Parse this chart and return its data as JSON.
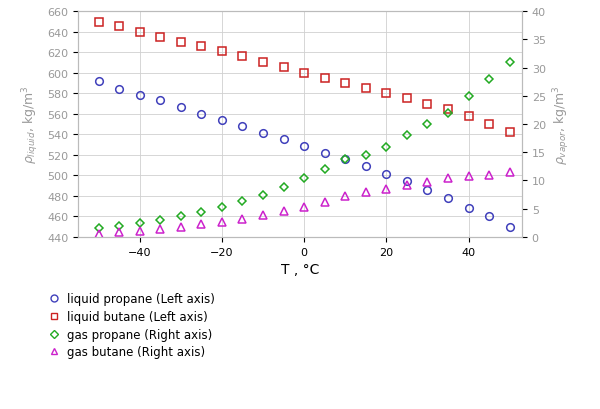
{
  "liquid_propane_T": [
    -50,
    -45,
    -40,
    -35,
    -30,
    -25,
    -20,
    -15,
    -10,
    -5,
    0,
    5,
    10,
    15,
    20,
    25,
    30,
    35,
    40,
    45,
    50
  ],
  "liquid_propane_rho": [
    592,
    584,
    578,
    573,
    567,
    560,
    554,
    548,
    541,
    535,
    529,
    522,
    516,
    509,
    501,
    494,
    486,
    478,
    468,
    460,
    450
  ],
  "liquid_butane_T": [
    -50,
    -45,
    -40,
    -35,
    -30,
    -25,
    -20,
    -15,
    -10,
    -5,
    0,
    5,
    10,
    15,
    20,
    25,
    30,
    35,
    40,
    45,
    50
  ],
  "liquid_butane_rho": [
    650,
    646,
    640,
    635,
    630,
    626,
    621,
    616,
    611,
    606,
    600,
    595,
    590,
    585,
    580,
    575,
    570,
    565,
    558,
    550,
    542
  ],
  "gas_propane_T": [
    -50,
    -45,
    -40,
    -35,
    -30,
    -25,
    -20,
    -15,
    -10,
    -5,
    0,
    5,
    10,
    15,
    20,
    25,
    30,
    35,
    40,
    45,
    50
  ],
  "gas_propane_rho": [
    1.6,
    2.0,
    2.5,
    3.0,
    3.7,
    4.4,
    5.3,
    6.3,
    7.5,
    8.8,
    10.4,
    12.0,
    13.8,
    14.5,
    16.0,
    18.0,
    20.0,
    22.0,
    25.0,
    28.0,
    31.0
  ],
  "gas_butane_T": [
    -50,
    -45,
    -40,
    -35,
    -30,
    -25,
    -20,
    -15,
    -10,
    -5,
    0,
    5,
    10,
    15,
    20,
    25,
    30,
    35,
    40,
    45,
    50
  ],
  "gas_butane_rho": [
    0.5,
    0.8,
    1.1,
    1.4,
    1.8,
    2.2,
    2.7,
    3.2,
    3.8,
    4.5,
    5.3,
    6.2,
    7.3,
    8.0,
    8.5,
    9.2,
    9.8,
    10.4,
    10.8,
    11.0,
    11.5
  ],
  "xlim": [
    -55,
    53
  ],
  "ylim_left": [
    440,
    660
  ],
  "ylim_right": [
    0,
    40
  ],
  "yticks_left": [
    440,
    460,
    480,
    500,
    520,
    540,
    560,
    580,
    600,
    620,
    640,
    660
  ],
  "yticks_right": [
    0,
    5,
    10,
    15,
    20,
    25,
    30,
    35,
    40
  ],
  "xticks": [
    -40,
    -20,
    0,
    20,
    40
  ],
  "xlabel": "T , °C",
  "ylabel_left": "ρliquid, kg/m³",
  "ylabel_right": "ρvapor, kg/m³",
  "color_liquid_propane": "#4040bb",
  "color_liquid_butane": "#cc2222",
  "color_gas_propane": "#22aa22",
  "color_gas_butane": "#cc22cc",
  "legend_labels": [
    "liquid propane (Left axis)",
    "liquid butane (Left axis)",
    "gas propane (Right axis)",
    "gas butane (Right axis)"
  ],
  "legend_colors": [
    "#4040bb",
    "#cc2222",
    "#22aa22",
    "#cc22cc"
  ],
  "legend_markers": [
    "o",
    "s",
    "D",
    "^"
  ],
  "grid_color": "#d0d0d0",
  "axis_label_color": "#999999",
  "tick_label_color": "#999999",
  "spine_color": "#bbbbbb"
}
